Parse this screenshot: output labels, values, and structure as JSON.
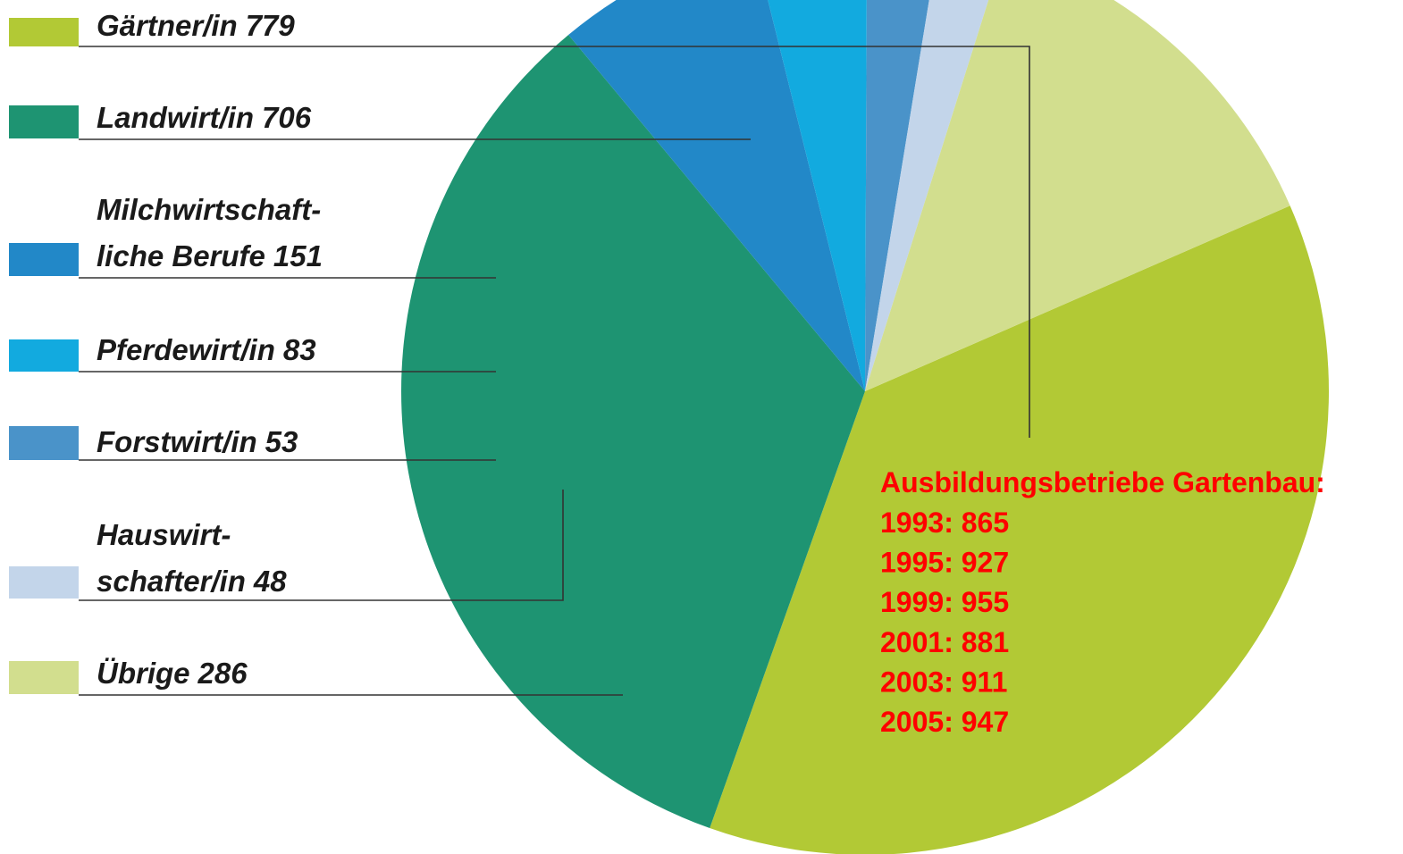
{
  "chart_data": {
    "type": "pie",
    "categories": [
      "Gärtner/in",
      "Landwirt/in",
      "Milchwirtschaft-\nliche Berufe",
      "Pferdewirt/in",
      "Forstwirt/in",
      "Hauswirt-\nschafter/in",
      "Übrige"
    ],
    "values": [
      779,
      706,
      151,
      83,
      53,
      48,
      286
    ],
    "colors": [
      "#b2c935",
      "#1e9472",
      "#2288c8",
      "#12aadf",
      "#4a93c9",
      "#c3d5ea",
      "#d2de8e"
    ],
    "annotation": {
      "title": "Ausbildungsbetriebe Gartenbau:",
      "lines": [
        "1993: 865",
        "1995: 927",
        "1999: 955",
        "2001: 881",
        "2003: 911",
        "2005: 947"
      ]
    }
  }
}
